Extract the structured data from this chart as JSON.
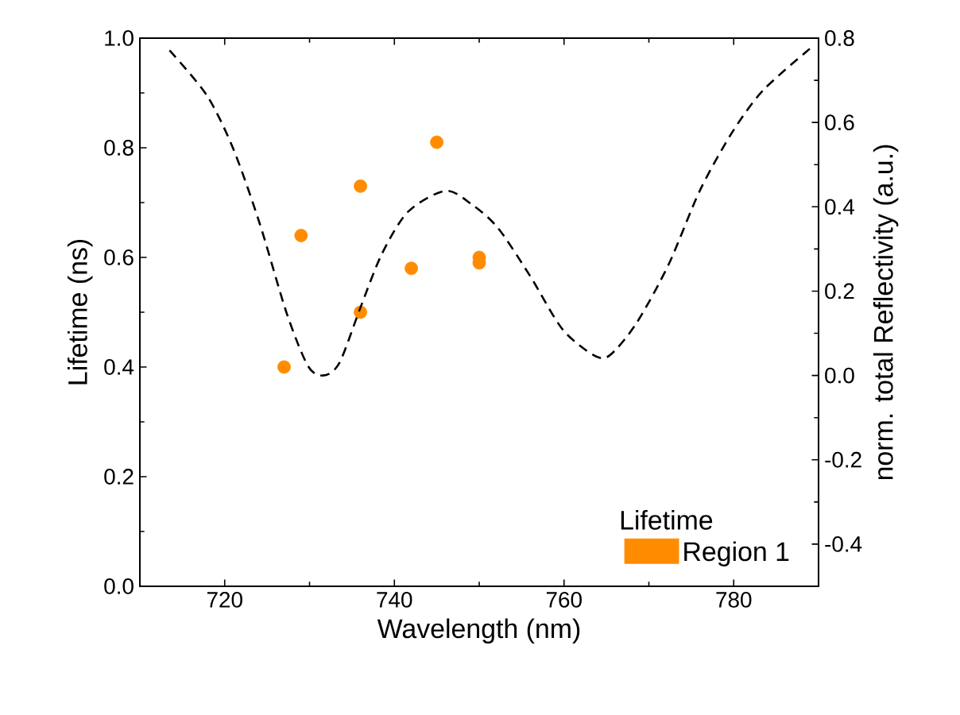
{
  "chart_data": {
    "type": "scatter",
    "xlabel": "Wavelength (nm)",
    "ylabel": "Lifetime (ns)",
    "y2label": "norm. total Reflectivity (a.u.)",
    "legend_title": "Lifetime",
    "legend": "bottom right",
    "xlim": [
      710,
      790
    ],
    "xticks": [
      720,
      740,
      760,
      780
    ],
    "ylim": [
      0,
      1.0
    ],
    "yticks": [
      {
        "value": 0,
        "label": "0.0"
      },
      {
        "value": 0.2,
        "label": "0.2"
      },
      {
        "value": 0.4,
        "label": "0.4"
      },
      {
        "value": 0.6,
        "label": "0.6"
      },
      {
        "value": 0.8,
        "label": "0.8"
      },
      {
        "value": 1.0,
        "label": "1.0"
      }
    ],
    "y2lim": [
      -0.5,
      0.8
    ],
    "y2ticks": [
      {
        "value": -0.4,
        "label": "-0.4"
      },
      {
        "value": -0.2,
        "label": "-0.2"
      },
      {
        "value": 0,
        "label": "0.0"
      },
      {
        "value": 0.2,
        "label": "0.2"
      },
      {
        "value": 0.4,
        "label": "0.4"
      },
      {
        "value": 0.6,
        "label": "0.6"
      },
      {
        "value": 0.8,
        "label": "0.8"
      }
    ],
    "series": [
      {
        "name": "Region 1",
        "color": "#ff8c00",
        "marker": "circle",
        "x": [
          727,
          729,
          736,
          736,
          742,
          745,
          750,
          750
        ],
        "values": [
          0.4,
          0.64,
          0.73,
          0.5,
          0.58,
          0.81,
          0.6,
          0.59
        ]
      },
      {
        "type": "line",
        "axis": "y2",
        "color": "#000000",
        "line_style": "dashed",
        "marker": "none",
        "x": [
          713.5,
          717.9,
          721,
          724.1,
          727.3,
          729.8,
          731.6,
          733.5,
          736,
          738.5,
          741.6,
          746,
          749.1,
          752.2,
          756,
          759.8,
          763.5,
          765.4,
          768.5,
          772.3,
          776,
          779.8,
          783.5,
          789.1
        ],
        "values": [
          0.771,
          0.664,
          0.538,
          0.362,
          0.148,
          0.023,
          0.0,
          0.029,
          0.161,
          0.287,
          0.388,
          0.438,
          0.406,
          0.35,
          0.236,
          0.11,
          0.048,
          0.048,
          0.123,
          0.262,
          0.438,
          0.576,
          0.677,
          0.777
        ]
      }
    ]
  }
}
